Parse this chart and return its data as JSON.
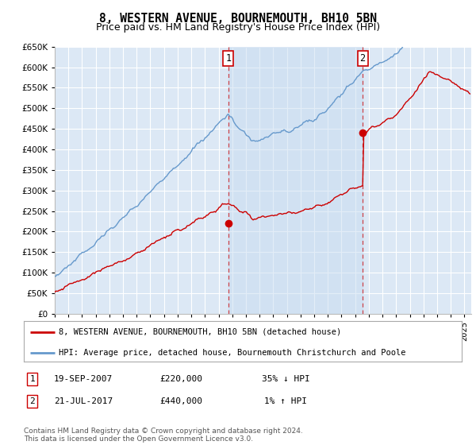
{
  "title": "8, WESTERN AVENUE, BOURNEMOUTH, BH10 5BN",
  "subtitle": "Price paid vs. HM Land Registry's House Price Index (HPI)",
  "ylim": [
    0,
    650000
  ],
  "yticks": [
    0,
    50000,
    100000,
    150000,
    200000,
    250000,
    300000,
    350000,
    400000,
    450000,
    500000,
    550000,
    600000,
    650000
  ],
  "xlim_start": 1995.0,
  "xlim_end": 2025.5,
  "background_color": "#ffffff",
  "plot_bg_color": "#dce8f5",
  "grid_color": "#ffffff",
  "red_line_color": "#cc0000",
  "blue_line_color": "#6699cc",
  "fill_color": "#dce8f5",
  "marker1_date": "19-SEP-2007",
  "marker1_price": "£220,000",
  "marker1_hpi": "35% ↓ HPI",
  "marker1_year": 2007.72,
  "marker1_value": 220000,
  "marker2_date": "21-JUL-2017",
  "marker2_price": "£440,000",
  "marker2_hpi": "1% ↑ HPI",
  "marker2_year": 2017.55,
  "marker2_value": 440000,
  "legend_label_red": "8, WESTERN AVENUE, BOURNEMOUTH, BH10 5BN (detached house)",
  "legend_label_blue": "HPI: Average price, detached house, Bournemouth Christchurch and Poole",
  "footer": "Contains HM Land Registry data © Crown copyright and database right 2024.\nThis data is licensed under the Open Government Licence v3.0.",
  "title_fontsize": 10.5,
  "subtitle_fontsize": 9,
  "axis_fontsize": 7.5,
  "legend_fontsize": 7.5,
  "footer_fontsize": 6.5
}
